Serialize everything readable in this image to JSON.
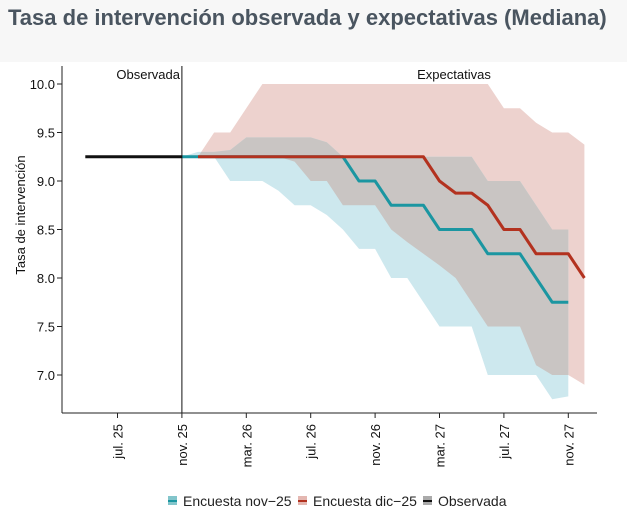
{
  "chart_data": {
    "type": "line",
    "title": "Tasa de intervención observada y expectativas (Mediana)",
    "ylabel": "Tasa de intervención",
    "xlabel": "",
    "ylim": [
      6.7,
      10.2
    ],
    "yticks": [
      7.0,
      7.5,
      8.0,
      8.5,
      9.0,
      9.5,
      10.0
    ],
    "ytick_labels": [
      "7.0",
      "7.5",
      "8.0",
      "8.5",
      "9.0",
      "9.5",
      "10.0"
    ],
    "x_unit": "months since jul. 25",
    "xlim": [
      -3.4,
      29.5
    ],
    "xticks": [
      0,
      4,
      8,
      12,
      16,
      20,
      24,
      28
    ],
    "xtick_labels": [
      "jul. 25",
      "nov. 25",
      "mar. 26",
      "jul. 26",
      "nov. 26",
      "mar. 27",
      "jul. 27",
      "nov. 27"
    ],
    "divider_x": 4,
    "annotations": [
      "Observada",
      "Expectativas"
    ],
    "legend": {
      "placement": "bottom",
      "entries": [
        "Encuesta nov−25",
        "Encuesta dic−25",
        "Observada"
      ]
    },
    "series": [
      {
        "name": "Encuesta nov−25",
        "color": "#1b96a1",
        "band_color": "#cde8ee",
        "x": [
          4,
          5,
          6,
          7,
          8,
          9,
          10,
          11,
          12,
          13,
          14,
          15,
          16,
          17,
          18,
          19,
          20,
          21,
          22,
          23,
          24,
          25,
          26,
          27,
          28
        ],
        "median": [
          9.25,
          9.25,
          9.25,
          9.25,
          9.25,
          9.25,
          9.25,
          9.25,
          9.25,
          9.25,
          9.25,
          9.0,
          9.0,
          8.75,
          8.75,
          8.75,
          8.5,
          8.5,
          8.5,
          8.25,
          8.25,
          8.25,
          8.0,
          7.75,
          7.75
        ],
        "upper": [
          9.25,
          9.3,
          9.3,
          9.32,
          9.45,
          9.45,
          9.45,
          9.45,
          9.45,
          9.4,
          9.25,
          9.25,
          9.25,
          9.25,
          9.25,
          9.25,
          9.25,
          9.25,
          9.25,
          9.0,
          9.0,
          9.0,
          8.75,
          8.5,
          8.5
        ],
        "lower": [
          9.25,
          9.25,
          9.25,
          9.0,
          9.0,
          9.0,
          8.9,
          8.75,
          8.75,
          8.65,
          8.5,
          8.3,
          8.3,
          8.0,
          8.0,
          7.75,
          7.5,
          7.5,
          7.5,
          7.0,
          7.0,
          7.0,
          7.0,
          6.75,
          6.78
        ]
      },
      {
        "name": "Encuesta dic−25",
        "color": "#b3321f",
        "band_color": "#edd2ce",
        "x": [
          5,
          6,
          7,
          8,
          9,
          10,
          11,
          12,
          13,
          14,
          15,
          16,
          17,
          18,
          19,
          20,
          21,
          22,
          23,
          24,
          25,
          26,
          27,
          28,
          29
        ],
        "median": [
          9.25,
          9.25,
          9.25,
          9.25,
          9.25,
          9.25,
          9.25,
          9.25,
          9.25,
          9.25,
          9.25,
          9.25,
          9.25,
          9.25,
          9.25,
          9.0,
          8.875,
          8.875,
          8.75,
          8.5,
          8.5,
          8.25,
          8.25,
          8.25,
          8.0
        ],
        "upper": [
          9.25,
          9.5,
          9.5,
          9.75,
          10.0,
          10.0,
          10.0,
          10.0,
          10.0,
          10.0,
          10.0,
          10.0,
          10.0,
          10.0,
          10.0,
          10.0,
          10.0,
          10.0,
          10.0,
          9.75,
          9.75,
          9.6,
          9.5,
          9.5,
          9.375
        ],
        "lower": [
          9.25,
          9.25,
          9.25,
          9.25,
          9.25,
          9.25,
          9.2,
          9.0,
          9.0,
          8.75,
          8.75,
          8.75,
          8.5,
          8.37,
          8.25,
          8.13,
          8.0,
          7.75,
          7.5,
          7.5,
          7.5,
          7.1,
          7.0,
          7.0,
          6.9
        ]
      },
      {
        "name": "Observada",
        "color": "#111111",
        "x": [
          -2,
          -1,
          0,
          1,
          2,
          3,
          4
        ],
        "median": [
          9.25,
          9.25,
          9.25,
          9.25,
          9.25,
          9.25,
          9.25
        ]
      }
    ],
    "overlap_color": "#c9c5c3"
  }
}
